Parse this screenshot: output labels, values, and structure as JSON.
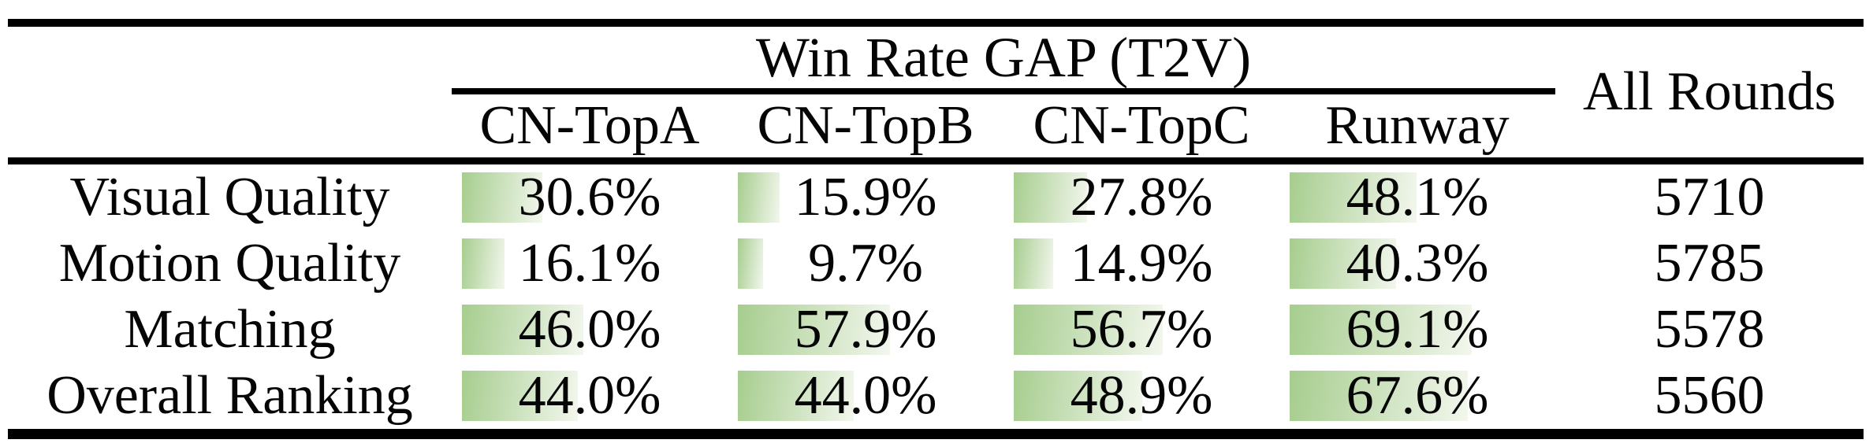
{
  "table": {
    "title": "Win Rate GAP (T2V)",
    "all_rounds_header": "All Rounds",
    "columns": [
      "CN-TopA",
      "CN-TopB",
      "CN-TopC",
      "Runway"
    ],
    "rows": [
      {
        "label": "Visual Quality",
        "cells": [
          {
            "text": "30.6%",
            "pct": 30.6
          },
          {
            "text": "15.9%",
            "pct": 15.9
          },
          {
            "text": "27.8%",
            "pct": 27.8
          },
          {
            "text": "48.1%",
            "pct": 48.1
          }
        ],
        "rounds": "5710"
      },
      {
        "label": "Motion Quality",
        "cells": [
          {
            "text": "16.1%",
            "pct": 16.1
          },
          {
            "text": "9.7%",
            "pct": 9.7
          },
          {
            "text": "14.9%",
            "pct": 14.9
          },
          {
            "text": "40.3%",
            "pct": 40.3
          }
        ],
        "rounds": "5785"
      },
      {
        "label": "Matching",
        "cells": [
          {
            "text": "46.0%",
            "pct": 46.0
          },
          {
            "text": "57.9%",
            "pct": 57.9
          },
          {
            "text": "56.7%",
            "pct": 56.7
          },
          {
            "text": "69.1%",
            "pct": 69.1
          }
        ],
        "rounds": "5578"
      },
      {
        "label": "Overall Ranking",
        "cells": [
          {
            "text": "44.0%",
            "pct": 44.0
          },
          {
            "text": "44.0%",
            "pct": 44.0
          },
          {
            "text": "48.9%",
            "pct": 48.9
          },
          {
            "text": "67.6%",
            "pct": 67.6
          }
        ],
        "rounds": "5560"
      }
    ],
    "colors": {
      "ink": "#050505",
      "rule": "#000000",
      "bar_gradient_start": "#a6cd8e",
      "bar_gradient_end": "#f3f7ee"
    }
  },
  "chart_data": {
    "type": "table",
    "title": "Win Rate GAP (T2V)",
    "columns": [
      "CN-TopA",
      "CN-TopB",
      "CN-TopC",
      "Runway",
      "All Rounds"
    ],
    "row_labels": [
      "Visual Quality",
      "Motion Quality",
      "Matching",
      "Overall Ranking"
    ],
    "series": [
      {
        "name": "CN-TopA",
        "values": [
          30.6,
          16.1,
          46.0,
          44.0
        ]
      },
      {
        "name": "CN-TopB",
        "values": [
          15.9,
          9.7,
          57.9,
          44.0
        ]
      },
      {
        "name": "CN-TopC",
        "values": [
          27.8,
          14.9,
          56.7,
          48.9
        ]
      },
      {
        "name": "Runway",
        "values": [
          48.1,
          40.3,
          69.1,
          67.6
        ]
      },
      {
        "name": "All Rounds",
        "values": [
          5710,
          5785,
          5578,
          5560
        ]
      }
    ],
    "units": "win-rate gap in percent; All Rounds column is a round count",
    "bar_range": [
      0,
      100
    ],
    "layout": "in-cell data bars, left-aligned, length proportional to percent, green gradient fill"
  }
}
